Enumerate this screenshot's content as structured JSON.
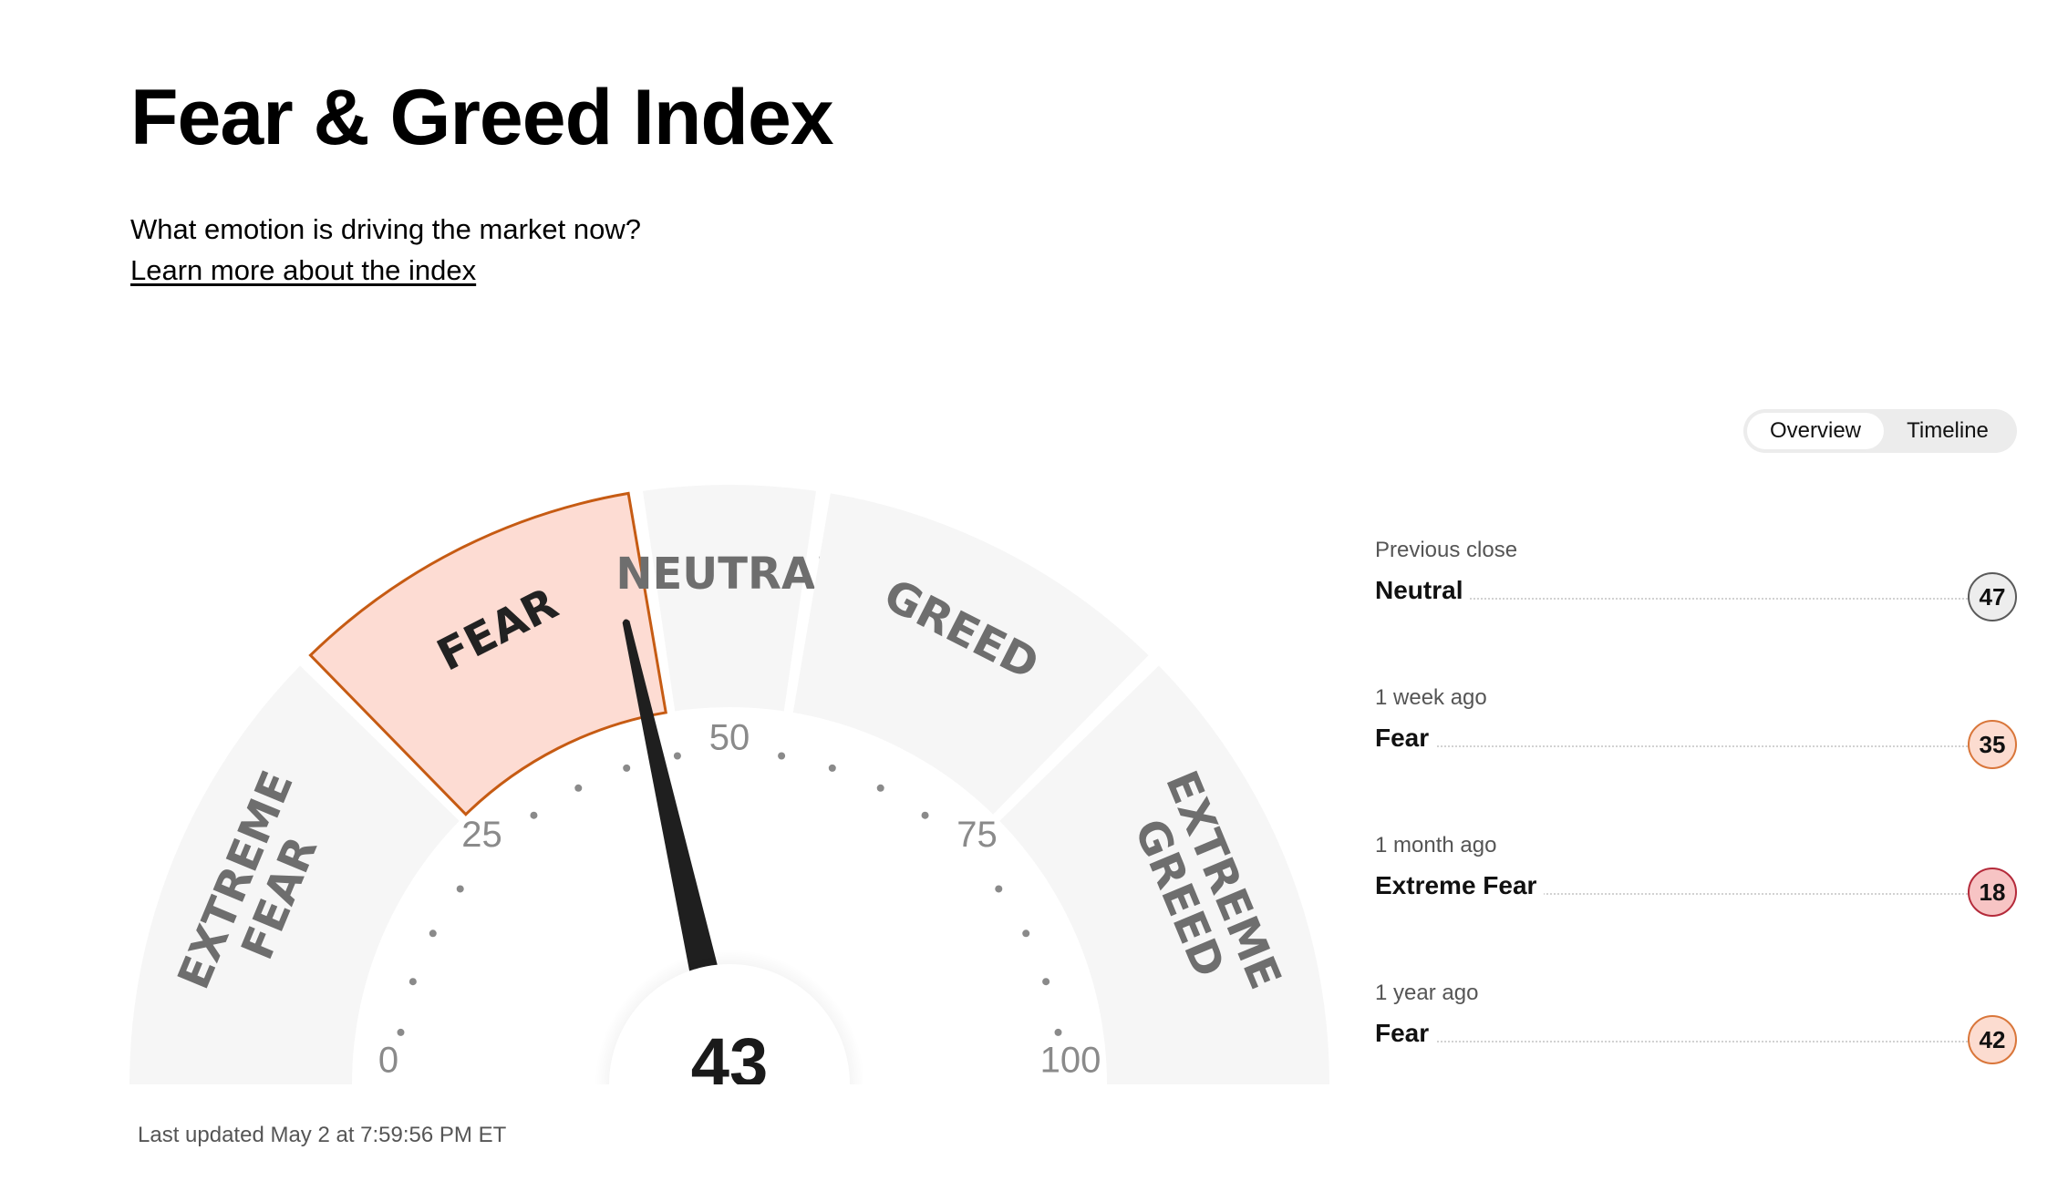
{
  "header": {
    "title": "Fear & Greed Index",
    "subtitle": "What emotion is driving the market now?",
    "learn_link": "Learn more about the index"
  },
  "tabs": [
    {
      "label": "Overview",
      "active": true
    },
    {
      "label": "Timeline",
      "active": false
    }
  ],
  "gauge": {
    "value": 43,
    "value_text": "43",
    "active_segment": "Fear",
    "segments": [
      {
        "lines": [
          "EXTREME",
          "FEAR"
        ],
        "from": 0,
        "to": 25
      },
      {
        "lines": [
          "FEAR"
        ],
        "from": 25,
        "to": 45
      },
      {
        "lines": [
          "NEUTRAL"
        ],
        "from": 45,
        "to": 55
      },
      {
        "lines": [
          "GREED"
        ],
        "from": 55,
        "to": 75
      },
      {
        "lines": [
          "EXTREME",
          "GREED"
        ],
        "from": 75,
        "to": 100
      }
    ],
    "tick_labels": [
      "0",
      "25",
      "50",
      "75",
      "100"
    ],
    "colors": {
      "inactive_segment": "#f6f6f6",
      "active_fill": "#fddcd3",
      "active_stroke": "#c65b13",
      "needle": "#1f1f1f"
    }
  },
  "last_updated": "Last updated May 2 at 7:59:56 PM ET",
  "history": [
    {
      "period": "Previous close",
      "rating": "Neutral",
      "value": "47",
      "badge_bg": "#ededed",
      "badge_border": "#5a5a5a"
    },
    {
      "period": "1 week ago",
      "rating": "Fear",
      "value": "35",
      "badge_bg": "#fcdcd0",
      "badge_border": "#d9763a"
    },
    {
      "period": "1 month ago",
      "rating": "Extreme Fear",
      "value": "18",
      "badge_bg": "#f7c4c4",
      "badge_border": "#b42a3a"
    },
    {
      "period": "1 year ago",
      "rating": "Fear",
      "value": "42",
      "badge_bg": "#fcdcd0",
      "badge_border": "#d9763a"
    }
  ]
}
